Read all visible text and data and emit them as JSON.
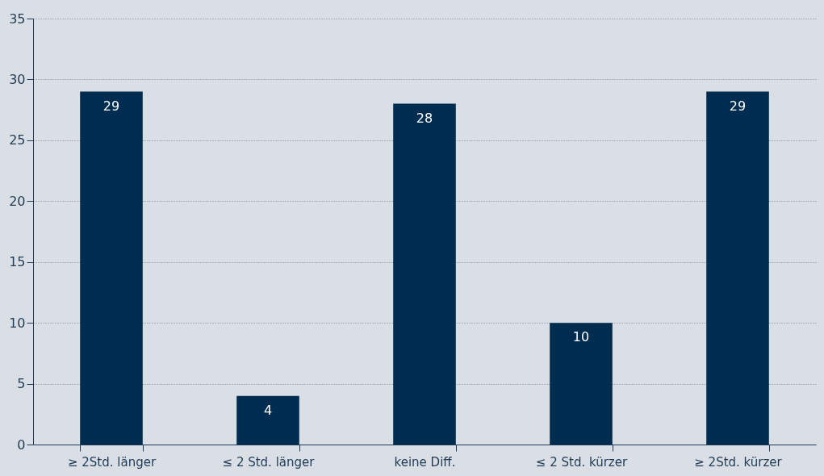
{
  "chart_data": {
    "type": "bar",
    "categories": [
      "≥ 2Std. länger",
      "≤ 2 Std. länger",
      "keine Diff.",
      "≤ 2 Std. kürzer",
      "≥ 2Std. kürzer"
    ],
    "values": [
      29,
      4,
      28,
      10,
      29
    ],
    "color": "#002d4f",
    "ylim": [
      0,
      35
    ],
    "yticks": [
      0,
      5,
      10,
      15,
      20,
      25,
      30,
      35
    ],
    "grid": "y",
    "data_labels": true
  }
}
